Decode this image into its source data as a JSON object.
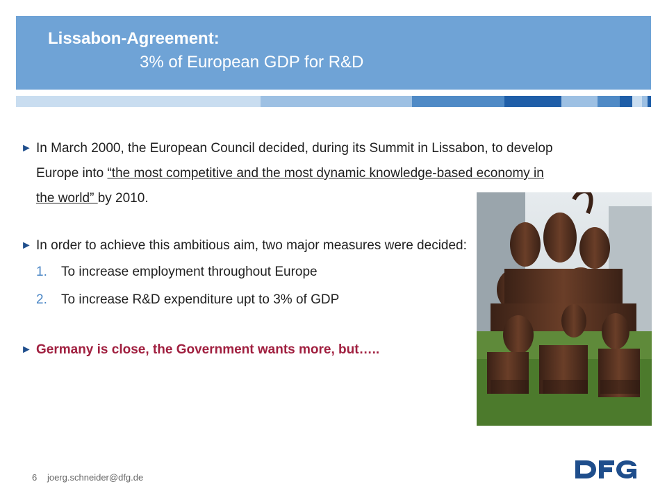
{
  "header": {
    "title_line1": "Lissabon-Agreement:",
    "title_line2": "3% of European GDP for R&D",
    "color": "#6fa3d6"
  },
  "bullets": {
    "b1_pre": "In March 2000, the European Council decided, during its Summit in Lissabon, to develop Europe into ",
    "b1_quote": "“the most competitive and the most dynamic knowledge-based economy in the world” ",
    "b1_post": "by 2010.",
    "b2": "In order to achieve this ambitious aim, two major measures were decided:",
    "items": [
      {
        "num": "1.",
        "text": "To increase employment throughout Europe"
      },
      {
        "num": "2.",
        "text": "To increase R&D expenditure upt to 3% of GDP"
      }
    ],
    "b3": "Germany is close, the Government wants more, but….."
  },
  "marker": "►",
  "accent_red": "#a01f3f",
  "footer": {
    "page_number": "6",
    "email": "joerg.schneider@dfg.de"
  },
  "logo": {
    "text": "DFG",
    "color": "#1f4e8c"
  }
}
